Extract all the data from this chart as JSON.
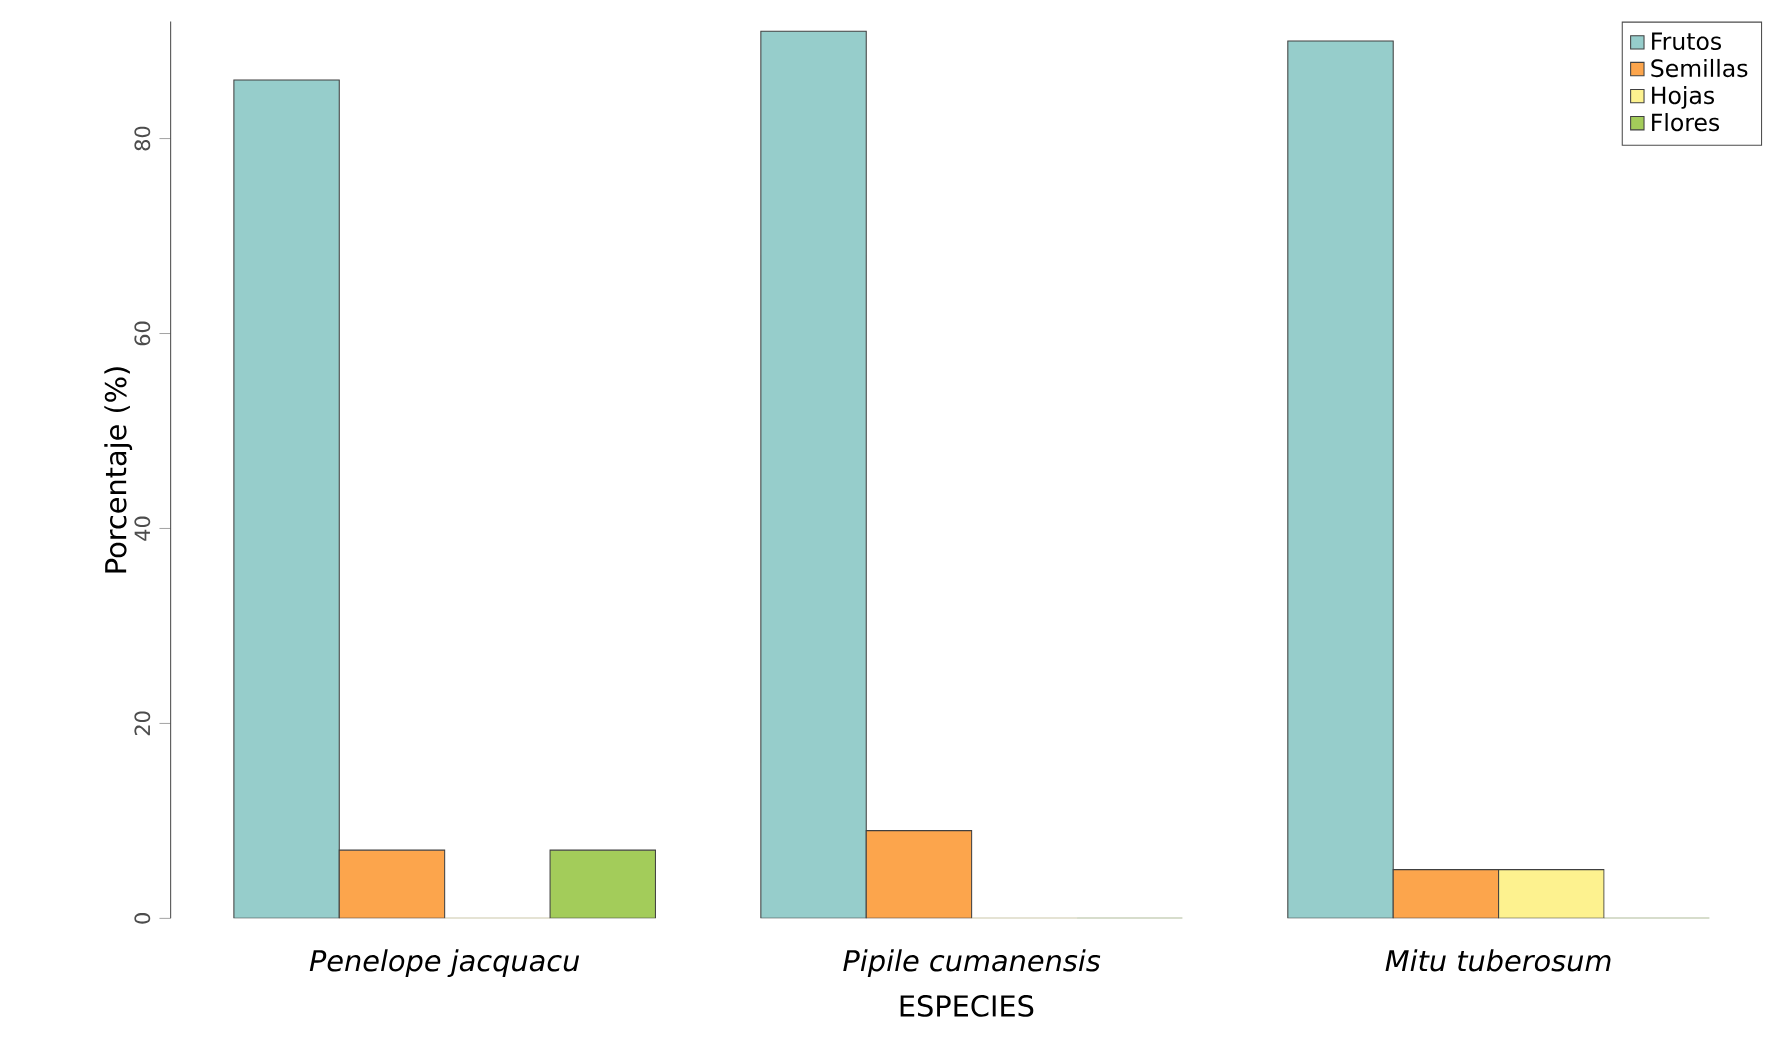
{
  "chart_data": {
    "type": "bar",
    "xlabel": "ESPECIES",
    "ylabel": "Porcentaje (%)",
    "categories": [
      "Penelope jacquacu",
      "Pipile cumanensis",
      "Mitu tuberosum"
    ],
    "series": [
      {
        "name": "Frutos",
        "color": "#96cdcb",
        "values": [
          86,
          91,
          90
        ]
      },
      {
        "name": "Semillas",
        "color": "#fca54c",
        "values": [
          7,
          9,
          5
        ]
      },
      {
        "name": "Hojas",
        "color": "#fdf28f",
        "values": [
          0,
          0,
          5
        ]
      },
      {
        "name": "Flores",
        "color": "#a3cc5a",
        "values": [
          7,
          0,
          0
        ]
      }
    ],
    "ylim": [
      0,
      92
    ],
    "yticks": [
      0,
      20,
      40,
      60,
      80
    ],
    "legend": "top right"
  }
}
